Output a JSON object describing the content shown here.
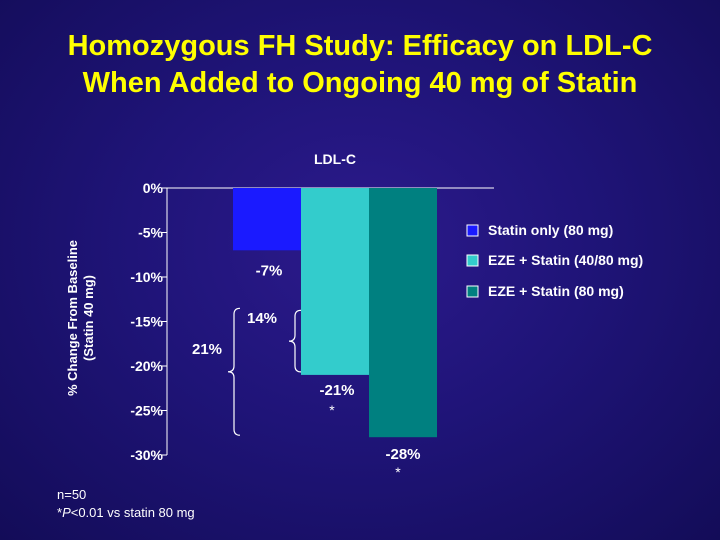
{
  "title": {
    "line1": "Homozygous FH Study: Efficacy on LDL-C",
    "line2": "When Added to Ongoing 40 mg of Statin"
  },
  "chart_data": {
    "type": "bar",
    "title": "LDL-C",
    "ylabel_line1": "% Change From Baseline",
    "ylabel_line2": "(Statin 40 mg)",
    "ylim": [
      -30,
      0
    ],
    "yticks": [
      0,
      -5,
      -10,
      -15,
      -20,
      -25,
      -30
    ],
    "ytick_labels": [
      "0%",
      "-5%",
      "-10%",
      "-15%",
      "-20%",
      "-25%",
      "-30%"
    ],
    "series": [
      {
        "name": "Statin only (80 mg)",
        "value": -7,
        "label": "-7%",
        "star": "",
        "color": "#1a1aff"
      },
      {
        "name": "EZE + Statin (40/80 mg)",
        "value": -21,
        "label": "-21%",
        "star": "*",
        "color": "#33cccc"
      },
      {
        "name": "EZE + Statin (80 mg)",
        "value": -28,
        "label": "-28%",
        "star": "*",
        "color": "#008080"
      }
    ],
    "brackets": [
      {
        "label": "14%",
        "from": -7,
        "to": -21
      },
      {
        "label": "21%",
        "from": -7,
        "to": -28
      }
    ],
    "legend_position": "right",
    "grid": false
  },
  "footnote": {
    "n": "n=50",
    "p_prefix": "*",
    "p_italic": "P",
    "p_rest": "<0.01 vs statin 80 mg"
  }
}
